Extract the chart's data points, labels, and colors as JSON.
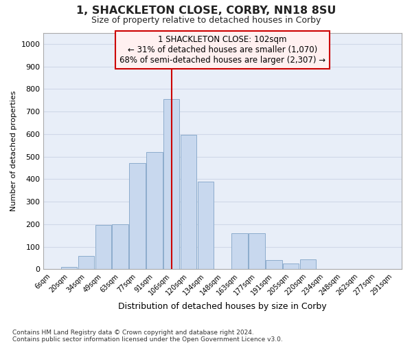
{
  "title": "1, SHACKLETON CLOSE, CORBY, NN18 8SU",
  "subtitle": "Size of property relative to detached houses in Corby",
  "xlabel": "Distribution of detached houses by size in Corby",
  "ylabel": "Number of detached properties",
  "categories": [
    "6sqm",
    "20sqm",
    "34sqm",
    "49sqm",
    "63sqm",
    "77sqm",
    "91sqm",
    "106sqm",
    "120sqm",
    "134sqm",
    "148sqm",
    "163sqm",
    "177sqm",
    "191sqm",
    "205sqm",
    "220sqm",
    "234sqm",
    "248sqm",
    "262sqm",
    "277sqm",
    "291sqm"
  ],
  "values": [
    0,
    10,
    60,
    195,
    200,
    470,
    520,
    755,
    595,
    390,
    0,
    160,
    160,
    40,
    25,
    45,
    0,
    0,
    0,
    0,
    0
  ],
  "bar_color": "#c8d8ee",
  "bar_edge_color": "#8caccc",
  "grid_color": "#d0d8e8",
  "bg_color": "#e8eef8",
  "vline_color": "#cc0000",
  "vline_x_index": 7,
  "annotation_text": "1 SHACKLETON CLOSE: 102sqm\n← 31% of detached houses are smaller (1,070)\n68% of semi-detached houses are larger (2,307) →",
  "annotation_fill": "#fff0f0",
  "annotation_edge": "#cc0000",
  "footnote1": "Contains HM Land Registry data © Crown copyright and database right 2024.",
  "footnote2": "Contains public sector information licensed under the Open Government Licence v3.0.",
  "ylim_max": 1050,
  "yticks": [
    0,
    100,
    200,
    300,
    400,
    500,
    600,
    700,
    800,
    900,
    1000
  ]
}
